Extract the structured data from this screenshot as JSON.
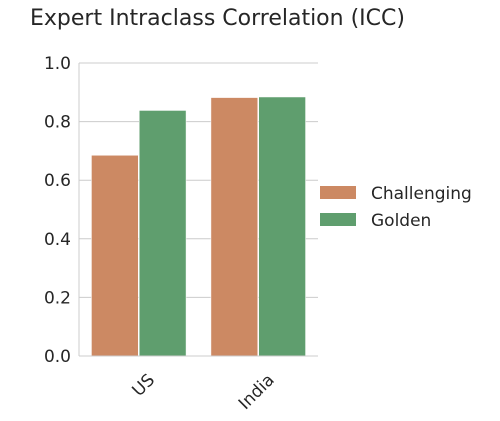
{
  "chart_data": {
    "type": "bar",
    "title": "Expert Intraclass Correlation (ICC)",
    "xlabel": "",
    "ylabel": "",
    "categories": [
      "US",
      "India"
    ],
    "series": [
      {
        "name": "Challenging",
        "values": [
          0.685,
          0.882
        ],
        "color": "#cc8963"
      },
      {
        "name": "Golden",
        "values": [
          0.838,
          0.884
        ],
        "color": "#5f9e6e"
      }
    ],
    "ylim": [
      0.0,
      1.0
    ],
    "yticks": [
      "0.0",
      "0.2",
      "0.4",
      "0.6",
      "0.8",
      "1.0"
    ],
    "grid": true,
    "legend_position": "right",
    "gridline_color": "#cccccc"
  }
}
